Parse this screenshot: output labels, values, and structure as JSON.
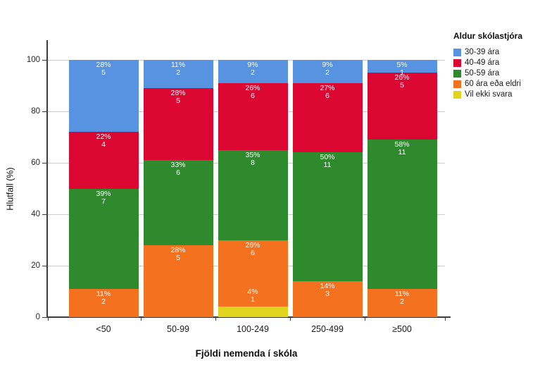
{
  "chart_data": {
    "type": "stacked_bar",
    "title": "",
    "legend_title": "Aldur skólastjóra",
    "xlabel": "Fjöldi nemenda í skóla",
    "ylabel": "Hlutfall (%)",
    "ylim": [
      0,
      100
    ],
    "yticks": [
      0,
      20,
      40,
      60,
      80,
      100
    ],
    "grid": true,
    "legend_position": "top-right",
    "categories": [
      "<50",
      "50-99",
      "100-249",
      "250-499",
      "≥500"
    ],
    "series": [
      {
        "name": "30-39 ára",
        "color": "#5793E0",
        "percents": [
          28,
          11,
          9,
          9,
          5
        ],
        "counts": [
          5,
          2,
          2,
          2,
          1
        ],
        "label_position": "top"
      },
      {
        "name": "40-49 ára",
        "color": "#DB0632",
        "percents": [
          22,
          28,
          26,
          27,
          26
        ],
        "counts": [
          4,
          5,
          6,
          6,
          5
        ],
        "label_position": "top"
      },
      {
        "name": "50-59 ára",
        "color": "#2F8A2D",
        "percents": [
          39,
          33,
          35,
          50,
          58
        ],
        "counts": [
          7,
          6,
          8,
          11,
          11
        ],
        "label_position": "top"
      },
      {
        "name": "60 ára eða eldri",
        "color": "#F4711F",
        "percents": [
          11,
          28,
          26,
          14,
          11
        ],
        "counts": [
          2,
          5,
          6,
          3,
          2
        ],
        "label_position": "top"
      },
      {
        "name": "Vil ekki svara",
        "color": "#E0D41E",
        "percents": [
          0,
          0,
          4,
          0,
          0
        ],
        "counts": [
          0,
          0,
          1,
          0,
          0
        ],
        "label_position": "above"
      }
    ],
    "colors": {
      "gridline": "#CBCBCB",
      "axis": "#3D3D3D",
      "segment_label_text": "#FFFFFF",
      "tick_text": "#262626"
    }
  }
}
